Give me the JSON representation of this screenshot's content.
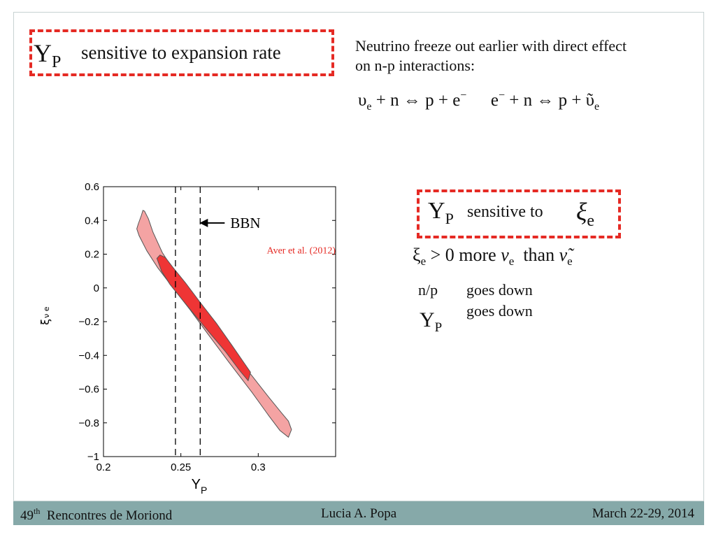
{
  "top_box": {
    "symbol": "Y",
    "symbol_sub": "P",
    "text": "sensitive to expansion rate"
  },
  "note": {
    "line1": "Neutrino freeze out earlier with direct effect",
    "line2": "on n-p interactions:"
  },
  "equations": {
    "eq1": "υ",
    "eq1_sub": "e",
    "eq1_rest": " + n ⇔ p + e",
    "eq1_sup": "−",
    "eq2": "e",
    "eq2_sup": "−",
    "eq2_rest": " + n ⇔ p + ῦ",
    "eq2_sub": "e"
  },
  "sensitivity_box": {
    "symbol": "Y",
    "symbol_sub": "P",
    "text": "sensitive to",
    "param": "ξ",
    "param_sub": "e"
  },
  "xi_statement": {
    "xi": "ξ",
    "xi_sub": "e",
    "condition": " > 0 more ",
    "nu": "ν",
    "nu_sub": "e",
    "than": "  than ",
    "nubar": "ν̃",
    "nubar_sub": "e"
  },
  "effects": {
    "np_label": "n/p",
    "np_trend": "goes down",
    "yp_symbol": "Y",
    "yp_sub": "P",
    "yp_trend": "goes down"
  },
  "chart_data": {
    "type": "contour",
    "xlabel": "Y",
    "xlabel_sub": "P",
    "ylabel": "ξ",
    "ylabel_sub": "ν e",
    "xlim": [
      0.2,
      0.35
    ],
    "ylim": [
      -1,
      0.6
    ],
    "xticks": [
      "0.2",
      "0.25",
      "0.3"
    ],
    "yticks": [
      "0.6",
      "0.4",
      "0.2",
      "0",
      "−0.2",
      "−0.4",
      "−0.6",
      "−0.8",
      "−1"
    ],
    "xtick_values": [
      0.2,
      0.25,
      0.3
    ],
    "ytick_values": [
      0.6,
      0.4,
      0.2,
      0,
      -0.2,
      -0.4,
      -0.6,
      -0.8,
      -1
    ],
    "bbn_lines": [
      0.2465,
      0.2625
    ],
    "bbn_label": "BBN",
    "reference": "Aver  et al. (2012)",
    "outer_color": "#f4a3a3",
    "inner_color": "#ef3535",
    "outer_contour": [
      [
        0.2255,
        0.46
      ],
      [
        0.2245,
        0.43
      ],
      [
        0.2225,
        0.38
      ],
      [
        0.2215,
        0.35
      ],
      [
        0.223,
        0.31
      ],
      [
        0.228,
        0.22
      ],
      [
        0.235,
        0.12
      ],
      [
        0.245,
        0.0
      ],
      [
        0.256,
        -0.13
      ],
      [
        0.268,
        -0.28
      ],
      [
        0.281,
        -0.44
      ],
      [
        0.296,
        -0.62
      ],
      [
        0.307,
        -0.76
      ],
      [
        0.314,
        -0.845
      ],
      [
        0.3195,
        -0.885
      ],
      [
        0.3215,
        -0.84
      ],
      [
        0.3195,
        -0.79
      ],
      [
        0.315,
        -0.74
      ],
      [
        0.307,
        -0.65
      ],
      [
        0.295,
        -0.51
      ],
      [
        0.282,
        -0.36
      ],
      [
        0.269,
        -0.21
      ],
      [
        0.257,
        -0.06
      ],
      [
        0.247,
        0.08
      ],
      [
        0.238,
        0.21
      ],
      [
        0.232,
        0.33
      ],
      [
        0.229,
        0.41
      ],
      [
        0.2265,
        0.455
      ]
    ],
    "inner_contour": [
      [
        0.2365,
        0.195
      ],
      [
        0.2345,
        0.175
      ],
      [
        0.2375,
        0.1
      ],
      [
        0.243,
        0.02
      ],
      [
        0.25,
        -0.06
      ],
      [
        0.258,
        -0.15
      ],
      [
        0.268,
        -0.26
      ],
      [
        0.279,
        -0.38
      ],
      [
        0.288,
        -0.49
      ],
      [
        0.2935,
        -0.55
      ],
      [
        0.295,
        -0.5
      ],
      [
        0.2905,
        -0.44
      ],
      [
        0.283,
        -0.34
      ],
      [
        0.273,
        -0.21
      ],
      [
        0.262,
        -0.08
      ],
      [
        0.253,
        0.03
      ],
      [
        0.245,
        0.12
      ],
      [
        0.24,
        0.18
      ]
    ]
  },
  "footer": {
    "edition_number": "49",
    "edition_sup": "th",
    "conference": "  Rencontres de Moriond",
    "author": "Lucia A. Popa",
    "dates": "March 22-29, 2014"
  },
  "colors": {
    "dash_border": "#e52a24",
    "footer_bg": "#86a9a9",
    "reference_text": "#e52a24"
  }
}
